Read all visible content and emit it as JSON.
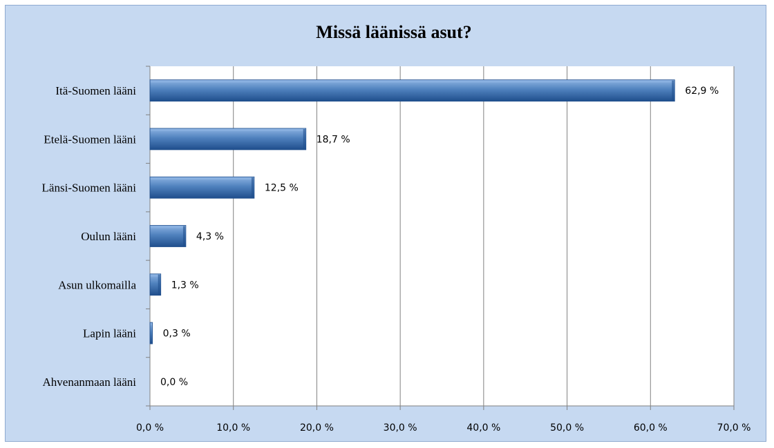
{
  "chart_data": {
    "type": "bar",
    "orientation": "horizontal",
    "title": "Missä läänissä asut?",
    "categories": [
      "Itä-Suomen lääni",
      "Etelä-Suomen lääni",
      "Länsi-Suomen lääni",
      "Oulun lääni",
      "Asun ulkomailla",
      "Lapin lääni",
      "Ahvenanmaan lääni"
    ],
    "values": [
      62.9,
      18.7,
      12.5,
      4.3,
      1.3,
      0.3,
      0.0
    ],
    "data_labels": [
      "62,9 %",
      "18,7 %",
      "12,5 %",
      "4,3 %",
      "1,3 %",
      "0,3 %",
      "0,0 %"
    ],
    "xlim": [
      0,
      70
    ],
    "xticks": [
      0,
      10,
      20,
      30,
      40,
      50,
      60,
      70
    ],
    "xtick_labels": [
      "0,0 %",
      "10,0 %",
      "20,0 %",
      "30,0 %",
      "40,0 %",
      "50,0 %",
      "60,0 %",
      "70,0 %"
    ],
    "grid": true,
    "legend": "none",
    "colors": {
      "chart_background": "#c6d9f1",
      "plot_background": "#ffffff",
      "bar_fill": "#4a7ebb",
      "bar_highlight": "#8db3e2",
      "bar_shadow": "#1f4e8c",
      "gridline": "#808080"
    }
  }
}
